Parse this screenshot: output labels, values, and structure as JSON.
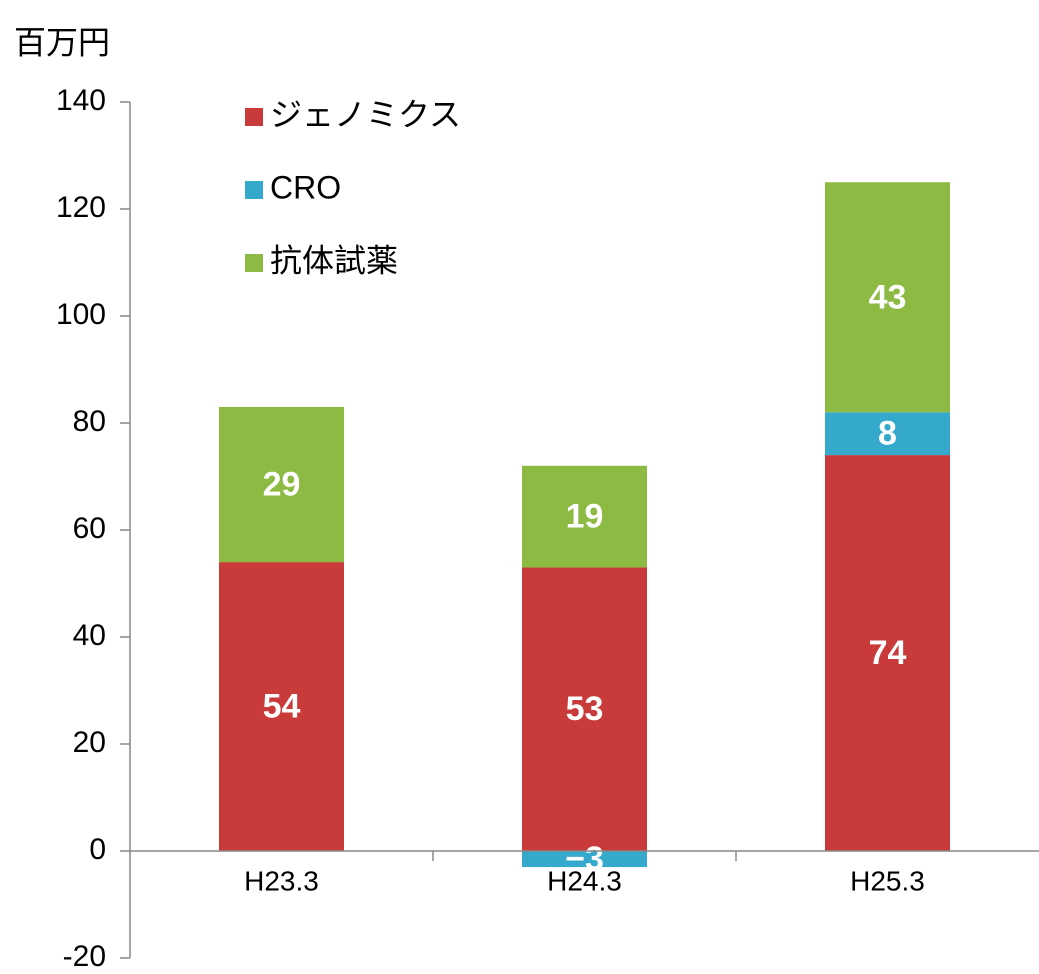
{
  "chart_data": {
    "type": "stacked_bar",
    "y_axis_label": "百万円",
    "categories": [
      "H23.3",
      "H24.3",
      "H25.3"
    ],
    "series": [
      {
        "name": "ジェノミクス",
        "color": "#c93a3a",
        "values": [
          54,
          53,
          74
        ]
      },
      {
        "name": "CRO",
        "color": "#35a9cc",
        "values": [
          null,
          -3,
          8
        ],
        "value_labels": [
          null,
          "−3",
          "8"
        ]
      },
      {
        "name": "抗体試薬",
        "color": "#8cba42",
        "values": [
          29,
          19,
          43
        ]
      }
    ],
    "ylim": [
      -20,
      140
    ],
    "yticks": [
      -20,
      0,
      20,
      40,
      60,
      80,
      100,
      120,
      140
    ]
  }
}
